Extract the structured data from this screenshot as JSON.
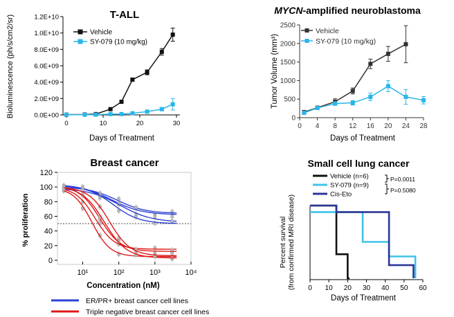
{
  "chart_data": [
    {
      "id": "tall",
      "type": "line",
      "title": "T-ALL",
      "xlabel": "Days of Treatment",
      "ylabel": "Bioluminescence (ph/s/cm2/sr)",
      "xlim": [
        -1,
        30
      ],
      "ylim": [
        0,
        12000000000
      ],
      "xticks": [
        "0",
        "10",
        "20",
        "30"
      ],
      "xtick_values": [
        0,
        10,
        20,
        30
      ],
      "yticks": [
        "0.0E+00",
        "2.0E+09",
        "4.0E+09",
        "6.0E+09",
        "8.0E+09",
        "1.0E+10",
        "1.2E+10"
      ],
      "ytick_values": [
        0,
        2000000000,
        4000000000,
        6000000000,
        8000000000,
        10000000000,
        12000000000
      ],
      "legend_position": "top-left",
      "series": [
        {
          "name": "Vehicle",
          "color": "#111111",
          "marker": "square",
          "x": [
            0,
            5,
            8,
            12,
            15,
            18,
            22,
            26,
            29
          ],
          "y": [
            30000000,
            50000000,
            100000000,
            700000000,
            1600000000,
            4300000000,
            5200000000,
            7700000000,
            9800000000
          ],
          "err": [
            0,
            0,
            0,
            80000000,
            100000000,
            200000000,
            300000000,
            400000000,
            800000000
          ]
        },
        {
          "name": "SY-079 (10 mg/kg)",
          "color": "#29b6e8",
          "marker": "square",
          "x": [
            0,
            5,
            8,
            12,
            15,
            18,
            22,
            26,
            29
          ],
          "y": [
            20000000,
            20000000,
            30000000,
            100000000,
            100000000,
            200000000,
            400000000,
            700000000,
            1300000000
          ],
          "err": [
            0,
            0,
            0,
            0,
            0,
            50000000,
            100000000,
            200000000,
            700000000
          ]
        }
      ]
    },
    {
      "id": "nb",
      "type": "line",
      "title_italic": "MYCN",
      "title_rest": "-amplified neuroblastoma",
      "xlabel": "Days of Treatment",
      "ylabel": "Tumor Volume (mm³)",
      "xlim": [
        0,
        28
      ],
      "ylim": [
        0,
        2500
      ],
      "xticks": [
        "0",
        "4",
        "8",
        "12",
        "16",
        "20",
        "24",
        "28"
      ],
      "xtick_values": [
        0,
        4,
        8,
        12,
        16,
        20,
        24,
        28
      ],
      "yticks": [
        "0",
        "500",
        "1000",
        "1500",
        "2000",
        "2500"
      ],
      "ytick_values": [
        0,
        500,
        1000,
        1500,
        2000,
        2500
      ],
      "legend_position": "top-left",
      "series": [
        {
          "name": "Vehicle",
          "color": "#333333",
          "marker": "square",
          "x": [
            1,
            4,
            8,
            12,
            16,
            20,
            24
          ],
          "y": [
            150,
            270,
            430,
            720,
            1450,
            1720,
            1980
          ],
          "err": [
            40,
            40,
            80,
            80,
            130,
            200,
            500
          ]
        },
        {
          "name": "SY-079 (10 mg/kg)",
          "color": "#29b6e8",
          "marker": "square",
          "x": [
            1,
            4,
            8,
            12,
            16,
            20,
            24,
            28
          ],
          "y": [
            130,
            260,
            380,
            400,
            560,
            850,
            560,
            470
          ],
          "err": [
            30,
            40,
            50,
            60,
            100,
            150,
            200,
            100
          ]
        }
      ]
    },
    {
      "id": "breast",
      "type": "line",
      "title": "Breast cancer",
      "xlabel": "Concentration (nM)",
      "ylabel": "% proliferation",
      "xscale": "log",
      "xlim": [
        2,
        10000
      ],
      "ylim": [
        0,
        120
      ],
      "xticks": [
        "10¹",
        "10²",
        "10³",
        "10⁴"
      ],
      "xtick_values": [
        10,
        100,
        1000,
        10000
      ],
      "yticks": [
        "0",
        "20",
        "40",
        "60",
        "80",
        "100",
        "120"
      ],
      "ytick_values": [
        0,
        20,
        40,
        60,
        80,
        100,
        120
      ],
      "reference_line_y": 50,
      "legend_position": "bottom",
      "legend": [
        {
          "name": "ER/PR+ breast cancer cell lines",
          "color": "#2b3fd6"
        },
        {
          "name": "Triple negative breast cancer cell lines",
          "color": "#e01818"
        }
      ],
      "curves": [
        {
          "group": "erpr",
          "top": 100,
          "bottom": 64,
          "ic50": 90,
          "hill": 1.1
        },
        {
          "group": "erpr",
          "top": 104,
          "bottom": 62,
          "ic50": 60,
          "hill": 1.0
        },
        {
          "group": "erpr",
          "top": 98,
          "bottom": 52,
          "ic50": 110,
          "hill": 1.0
        },
        {
          "group": "erpr",
          "top": 102,
          "bottom": 50,
          "ic50": 70,
          "hill": 1.2
        },
        {
          "group": "tnbc",
          "top": 100,
          "bottom": 15,
          "ic50": 22,
          "hill": 1.6
        },
        {
          "group": "tnbc",
          "top": 102,
          "bottom": 12,
          "ic50": 30,
          "hill": 1.5
        },
        {
          "group": "tnbc",
          "top": 99,
          "bottom": 5,
          "ic50": 18,
          "hill": 1.7
        },
        {
          "group": "tnbc",
          "top": 101,
          "bottom": 3,
          "ic50": 40,
          "hill": 1.4
        },
        {
          "group": "tnbc",
          "top": 100,
          "bottom": 6,
          "ic50": 55,
          "hill": 1.5
        }
      ],
      "points_x": [
        3,
        10,
        30,
        100,
        300,
        1000,
        3000
      ]
    },
    {
      "id": "sclc",
      "type": "line",
      "subtype": "survival",
      "title": "Small cell lung cancer",
      "xlabel": "Days of Treatment",
      "ylabel_line1": "Percent survival",
      "ylabel_line2": "(from confirmed MRI disease)",
      "xlim": [
        0,
        60
      ],
      "ylim": [
        0,
        100
      ],
      "xticks": [
        "0",
        "10",
        "20",
        "30",
        "40",
        "50",
        "60"
      ],
      "xtick_values": [
        0,
        10,
        20,
        30,
        40,
        50,
        60
      ],
      "legend_position": "top",
      "pvalues": [
        "P=0.0011",
        "P=0.5080"
      ],
      "series": [
        {
          "name": "Vehicle (n=6)",
          "color": "#111111",
          "x": [
            0,
            14,
            14,
            20,
            20,
            21
          ],
          "y": [
            100,
            100,
            33,
            33,
            0,
            0
          ]
        },
        {
          "name": "SY-079 (n=9)",
          "color": "#3ec3ea",
          "x": [
            0,
            28,
            28,
            42,
            42,
            56,
            56
          ],
          "y": [
            91,
            91,
            50,
            50,
            30,
            30,
            0
          ]
        },
        {
          "name": "Cis-Eto",
          "color": "#2b3596",
          "x": [
            0,
            14,
            14,
            42,
            42,
            55,
            55
          ],
          "y": [
            100,
            100,
            91,
            91,
            18,
            18,
            0
          ]
        }
      ]
    }
  ]
}
